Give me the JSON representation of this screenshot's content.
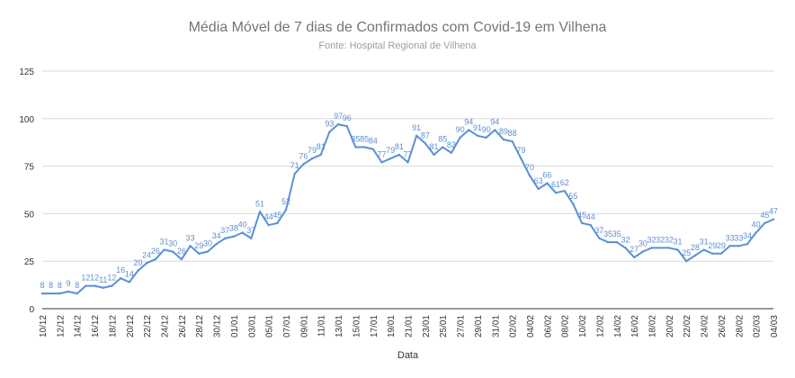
{
  "chart_data": {
    "type": "line",
    "title": "Média Móvel de 7 dias de Confirmados com Covid-19 em Vilhena",
    "subtitle": "Fonte: Hospital Regional de Vilhena",
    "xlabel": "Data",
    "ylabel": "",
    "ylim": [
      0,
      125
    ],
    "yticks": [
      0,
      25,
      50,
      75,
      100,
      125
    ],
    "grid": true,
    "legend": "none",
    "colors": {
      "line": "#5b8fd6",
      "label": "#5b8fd6",
      "grid": "#d9d9d9",
      "axis": "#333333",
      "title": "#757575",
      "subtitle": "#9e9e9e"
    },
    "x_tick_labels": [
      "10/12",
      "12/12",
      "14/12",
      "16/12",
      "18/12",
      "20/12",
      "22/12",
      "24/12",
      "26/12",
      "28/12",
      "30/12",
      "01/01",
      "03/01",
      "05/01",
      "07/01",
      "09/01",
      "11/01",
      "13/01",
      "15/01",
      "17/01",
      "19/01",
      "21/01",
      "23/01",
      "25/01",
      "27/01",
      "29/01",
      "31/01",
      "02/02",
      "04/02",
      "06/02",
      "08/02",
      "10/02",
      "12/02",
      "14/02",
      "16/02",
      "18/02",
      "20/02",
      "22/02",
      "24/02",
      "26/02",
      "28/02",
      "02/03",
      "04/03"
    ],
    "series": [
      {
        "values": [
          8,
          8,
          8,
          9,
          8,
          12,
          12,
          11,
          12,
          16,
          14,
          20,
          24,
          26,
          31,
          30,
          26,
          33,
          29,
          30,
          34,
          37,
          38,
          40,
          37,
          51,
          44,
          45,
          52,
          71,
          76,
          79,
          81,
          93,
          97,
          96,
          85,
          85,
          84,
          77,
          79,
          81,
          77,
          91,
          87,
          81,
          85,
          82,
          90,
          94,
          91,
          90,
          94,
          89,
          88,
          79,
          70,
          63,
          66,
          61,
          62,
          55,
          45,
          44,
          37,
          35,
          35,
          32,
          27,
          30,
          32,
          32,
          32,
          31,
          25,
          28,
          31,
          29,
          29,
          33,
          33,
          34,
          40,
          45,
          47
        ],
        "value_labels": [
          "8",
          "8",
          "8",
          "9",
          "8",
          "12",
          "12",
          "11",
          "12",
          "16",
          "14",
          "20",
          "24",
          "26",
          "31",
          "30",
          "26",
          "33",
          "29",
          "30",
          "34",
          "37",
          "38",
          "40",
          "37",
          "51",
          "44",
          "45",
          "52",
          "71",
          "76",
          "79",
          "81",
          "93",
          "97",
          "96",
          "85",
          "85",
          "84",
          "77",
          "79",
          "81",
          "77",
          "91",
          "87",
          "81",
          "85",
          "82",
          "90",
          "94",
          "91",
          "90",
          "94",
          "89",
          "88",
          "79",
          "70",
          "63",
          "66",
          "61",
          "62",
          "55",
          "45",
          "44",
          "37",
          "35",
          "35",
          "32",
          "27",
          "30",
          "32",
          "32",
          "32",
          "31",
          "25",
          "28",
          "31",
          "29",
          "29",
          "33",
          "33",
          "34",
          "40",
          "45",
          "47"
        ]
      }
    ]
  }
}
